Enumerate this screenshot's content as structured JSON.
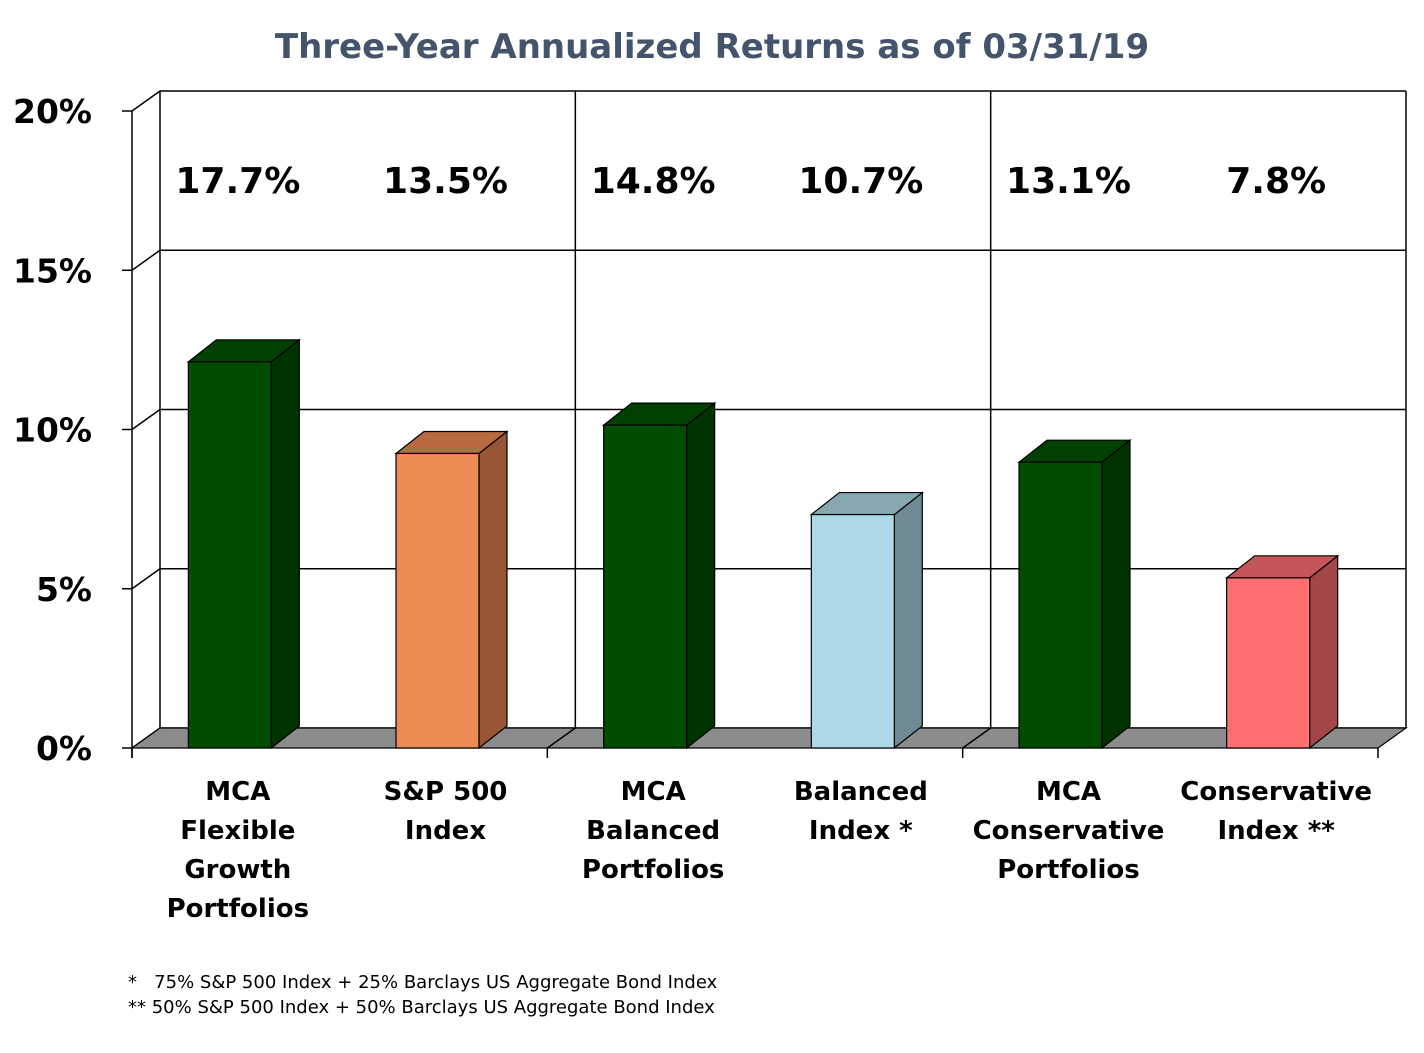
{
  "chart_data": {
    "type": "bar",
    "title": "Three-Year Annualized Returns as of 03/31/19",
    "categories": [
      [
        "MCA",
        "Flexible",
        "Growth",
        "Portfolios"
      ],
      [
        "S&P 500",
        "Index"
      ],
      [
        "MCA",
        "Balanced",
        "Portfolios"
      ],
      [
        "Balanced",
        "Index *"
      ],
      [
        "MCA",
        "Conservative",
        "Portfolios"
      ],
      [
        "Conservative",
        "Index **"
      ]
    ],
    "values": [
      17.7,
      13.5,
      14.8,
      10.7,
      13.1,
      7.8
    ],
    "value_labels": [
      "17.7%",
      "13.5%",
      "14.8%",
      "10.7%",
      "13.1%",
      "7.8%"
    ],
    "bar_colors": [
      "#004d00",
      "#ee8b55",
      "#004d00",
      "#add8e6",
      "#004d00",
      "#ff6f72"
    ],
    "bar_side_colors": [
      "#003300",
      "#995634",
      "#003300",
      "#6f8a93",
      "#003300",
      "#a4474a"
    ],
    "bar_top_colors": [
      "#004000",
      "#b86a40",
      "#004000",
      "#86a8b1",
      "#004000",
      "#c45558"
    ],
    "y_ticks": [
      "0%",
      "5%",
      "10%",
      "15%",
      "20%"
    ],
    "ylim": [
      0,
      20
    ],
    "grid": true,
    "xlabel": "",
    "ylabel": ""
  },
  "footnotes": [
    "*   75% S&P 500 Index + 25% Barclays US Aggregate Bond Index",
    "** 50% S&P 500 Index + 50% Barclays US Aggregate Bond Index"
  ]
}
